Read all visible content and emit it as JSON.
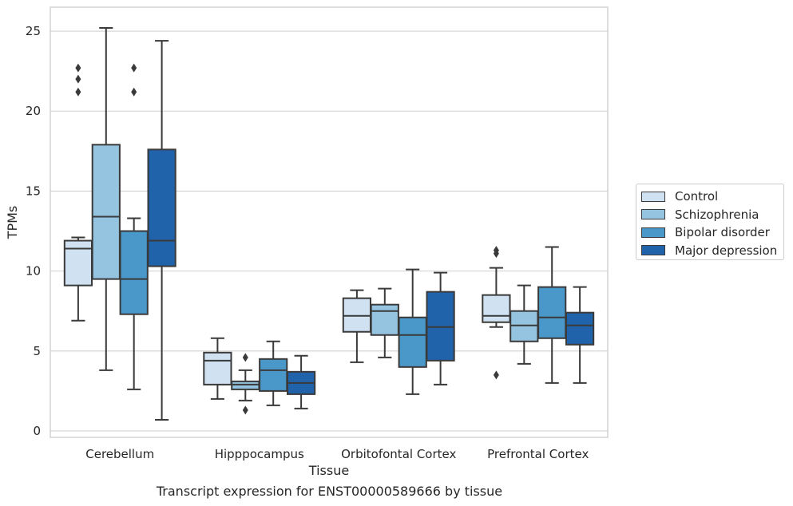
{
  "chart_data": {
    "type": "box",
    "xlabel": "Tissue",
    "ylabel": "TPMs",
    "ylim": [
      -0.4,
      26.5
    ],
    "yticks": [
      0,
      5,
      10,
      15,
      20,
      25
    ],
    "grid": "horizontal",
    "legend_position": "right",
    "categories": [
      "Cerebellum",
      "Hipppocampus",
      "Orbitofontal Cortex",
      "Prefrontal Cortex"
    ],
    "series": [
      {
        "name": "Control",
        "color": "#d0e1f2",
        "boxes": [
          {
            "whislo": 6.9,
            "q1": 9.1,
            "med": 11.4,
            "q3": 11.9,
            "whishi": 12.1,
            "fliers": [
              21.2,
              22.0,
              22.7
            ]
          },
          {
            "whislo": 2.0,
            "q1": 2.9,
            "med": 4.4,
            "q3": 4.9,
            "whishi": 5.8,
            "fliers": []
          },
          {
            "whislo": 4.3,
            "q1": 6.2,
            "med": 7.2,
            "q3": 8.3,
            "whishi": 8.8,
            "fliers": []
          },
          {
            "whislo": 6.5,
            "q1": 6.8,
            "med": 7.2,
            "q3": 8.5,
            "whishi": 10.2,
            "fliers": [
              3.5,
              11.1,
              11.3
            ]
          }
        ]
      },
      {
        "name": "Schizophrenia",
        "color": "#94c4df",
        "boxes": [
          {
            "whislo": 3.8,
            "q1": 9.5,
            "med": 13.4,
            "q3": 17.9,
            "whishi": 25.2,
            "fliers": []
          },
          {
            "whislo": 1.9,
            "q1": 2.6,
            "med": 2.9,
            "q3": 3.1,
            "whishi": 3.8,
            "fliers": [
              1.3,
              4.6
            ]
          },
          {
            "whislo": 4.6,
            "q1": 6.0,
            "med": 7.5,
            "q3": 7.9,
            "whishi": 8.9,
            "fliers": []
          },
          {
            "whislo": 4.2,
            "q1": 5.6,
            "med": 6.6,
            "q3": 7.5,
            "whishi": 9.1,
            "fliers": []
          }
        ]
      },
      {
        "name": "Bipolar disorder",
        "color": "#4a98c9",
        "boxes": [
          {
            "whislo": 2.6,
            "q1": 7.3,
            "med": 9.5,
            "q3": 12.5,
            "whishi": 13.3,
            "fliers": [
              21.2,
              22.7
            ]
          },
          {
            "whislo": 1.6,
            "q1": 2.5,
            "med": 3.8,
            "q3": 4.5,
            "whishi": 5.6,
            "fliers": []
          },
          {
            "whislo": 2.3,
            "q1": 4.0,
            "med": 6.0,
            "q3": 7.1,
            "whishi": 10.1,
            "fliers": []
          },
          {
            "whislo": 3.0,
            "q1": 5.8,
            "med": 7.1,
            "q3": 9.0,
            "whishi": 11.5,
            "fliers": []
          }
        ]
      },
      {
        "name": "Major depression",
        "color": "#2163aa",
        "boxes": [
          {
            "whislo": 0.7,
            "q1": 10.3,
            "med": 11.9,
            "q3": 17.6,
            "whishi": 24.4,
            "fliers": []
          },
          {
            "whislo": 1.4,
            "q1": 2.3,
            "med": 3.0,
            "q3": 3.7,
            "whishi": 4.7,
            "fliers": []
          },
          {
            "whislo": 2.9,
            "q1": 4.4,
            "med": 6.5,
            "q3": 8.7,
            "whishi": 9.9,
            "fliers": []
          },
          {
            "whislo": 3.0,
            "q1": 5.4,
            "med": 6.6,
            "q3": 7.4,
            "whishi": 9.0,
            "fliers": []
          }
        ]
      }
    ]
  },
  "caption": "Transcript expression for ENST00000589666 by tissue"
}
